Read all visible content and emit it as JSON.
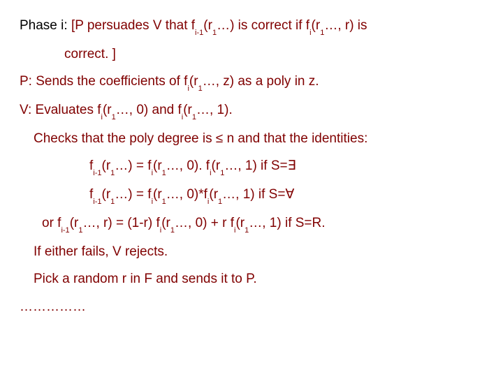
{
  "colors": {
    "text_primary": "#800000",
    "text_black": "#000000",
    "background": "#ffffff"
  },
  "typography": {
    "base_fontsize": 19,
    "sub_fontsize": 11,
    "line_height": 1.55,
    "font_family": "Verdana, Geneva, sans-serif"
  },
  "lines": {
    "l1a": "Phase i: ",
    "l1b": "[P persuades V that f",
    "l1c": "i-1",
    "l1d": "(r",
    "l1e": "1",
    "l1f": "…) is correct if f",
    "l1g": "i",
    "l1h": "(r",
    "l1i": "1",
    "l1j": "…, r) is",
    "l2": "correct. ]",
    "l3a": "P: Sends the coefficients of f",
    "l3b": "i",
    "l3c": "(r",
    "l3d": "1",
    "l3e": "…, z) as a poly in z.",
    "l4a": "V: Evaluates f",
    "l4b": "i",
    "l4c": "(r",
    "l4d": "1",
    "l4e": "…, 0) and f",
    "l4f": "i",
    "l4g": "(r",
    "l4h": "1",
    "l4i": "…, 1).",
    "l5a": "Checks that the poly degree is ",
    "l5b": "≤",
    "l5c": " n and that the identities:",
    "l6a": "f",
    "l6b": "i-1",
    "l6c": "(r",
    "l6d": "1",
    "l6e": "…)  = f",
    "l6f": "i",
    "l6g": "(r",
    "l6h": "1",
    "l6i": "…, 0). f",
    "l6j": "i",
    "l6k": "(r",
    "l6l": "1",
    "l6m": "…, 1)     if S=∃",
    "l7a": "f",
    "l7b": "i-1",
    "l7c": "(r",
    "l7d": "1",
    "l7e": "…)  = f",
    "l7f": "i",
    "l7g": "(r",
    "l7h": "1",
    "l7i": "…, 0)*f",
    "l7j": "i",
    "l7k": "(r",
    "l7l": "1",
    "l7m": "…, 1)     if S=∀",
    "l8a": "or f",
    "l8b": "i-1",
    "l8c": "(r",
    "l8d": "1",
    "l8e": "…, r) = (1-r) f",
    "l8f": "i",
    "l8g": "(r",
    "l8h": "1",
    "l8i": "…, 0) + r f",
    "l8j": "i",
    "l8k": "(r",
    "l8l": "1",
    "l8m": "…, 1)  if S=R.",
    "l9": "If either fails, V rejects.",
    "l10": "Pick a random r in F and sends it to P.",
    "l11": "……………"
  }
}
